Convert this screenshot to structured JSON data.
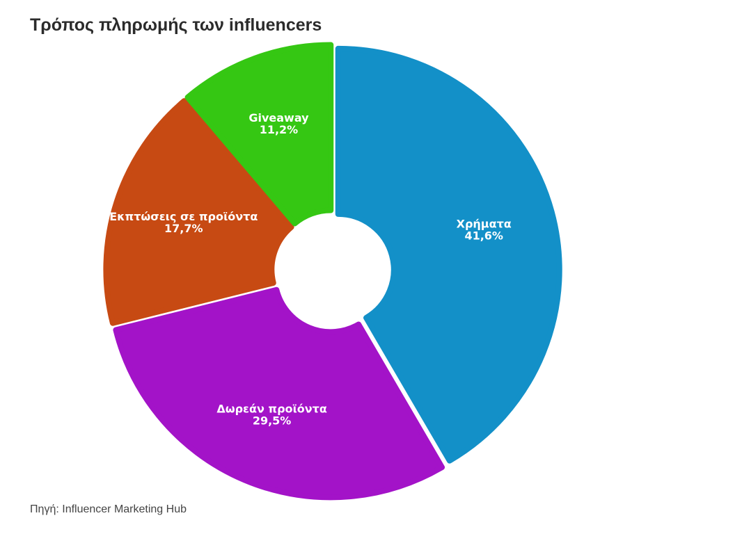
{
  "title": "Τρόπος πληρωμής των influencers",
  "source": "Πηγή: Influencer Marketing Hub",
  "chart_data": {
    "type": "pie",
    "variant": "donut",
    "title": "Τρόπος πληρωμής των influencers",
    "slices": [
      {
        "label": "Χρήματα",
        "value": 41.6,
        "value_label": "41,6%",
        "color": "#1390c8"
      },
      {
        "label": "Δωρεάν προϊόντα",
        "value": 29.5,
        "value_label": "29,5%",
        "color": "#a313c8"
      },
      {
        "label": "Εκπτώσεις σε προϊόντα",
        "value": 17.7,
        "value_label": "17,7%",
        "color": "#c74a13"
      },
      {
        "label": "Giveaway",
        "value": 11.2,
        "value_label": "11,2%",
        "color": "#35c713"
      }
    ],
    "legend": "none"
  }
}
